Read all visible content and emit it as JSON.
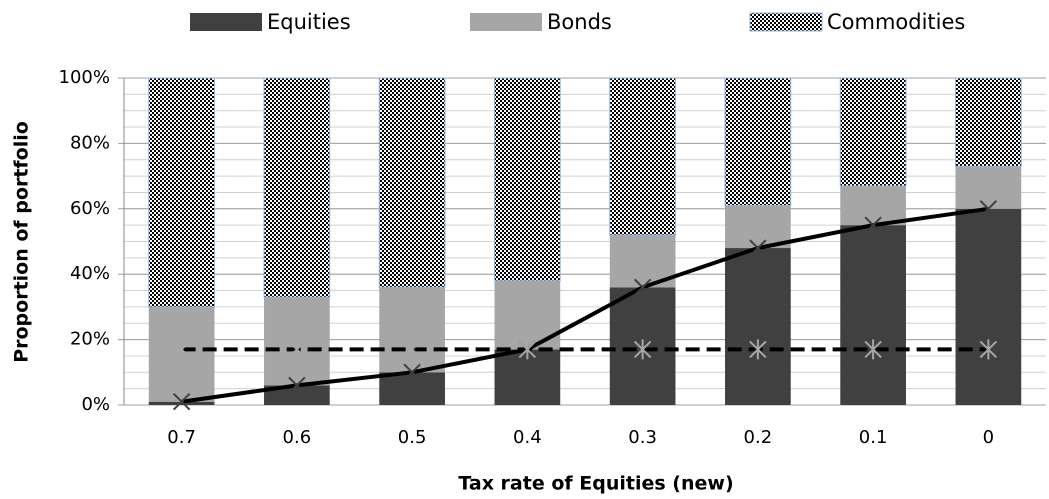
{
  "chart_data": {
    "type": "bar",
    "stacked": true,
    "categories": [
      "0.7",
      "0.6",
      "0.5",
      "0.4",
      "0.3",
      "0.2",
      "0.1",
      "0"
    ],
    "series": [
      {
        "name": "Equities",
        "color": "#404040",
        "values": [
          1,
          6,
          10,
          17,
          36,
          48,
          55,
          60
        ]
      },
      {
        "name": "Bonds",
        "color": "#a6a6a6",
        "values": [
          29,
          27,
          26,
          21,
          16,
          13,
          12,
          13
        ]
      },
      {
        "name": "Commodities",
        "color": "#000000",
        "pattern": "dots",
        "edge": "#8eb4e3",
        "values": [
          70,
          67,
          64,
          62,
          48,
          39,
          33,
          27
        ]
      }
    ],
    "lines": [
      {
        "type": "line",
        "color": "#000000",
        "marker": "x",
        "marker_color": "#404040",
        "dash": false,
        "values": [
          1,
          6,
          10,
          17,
          36,
          48,
          55,
          60
        ]
      },
      {
        "type": "line",
        "color": "#000000",
        "marker": "asterisk",
        "marker_color": "#a6a6a6",
        "dash": true,
        "values": [
          17,
          17,
          17,
          17,
          17,
          17,
          17,
          17
        ]
      }
    ],
    "ylim": [
      0,
      100
    ],
    "yticks": [
      {
        "value": 0,
        "label": "0%"
      },
      {
        "value": 20,
        "label": "20%"
      },
      {
        "value": 40,
        "label": "40%"
      },
      {
        "value": 60,
        "label": "60%"
      },
      {
        "value": 80,
        "label": "80%"
      },
      {
        "value": 100,
        "label": "100%"
      }
    ],
    "minor_grid_step": 5,
    "grid": true,
    "legend": "top",
    "x_label": "Tax rate of  Equities (new)",
    "y_label": "Proportion of portfolio"
  }
}
